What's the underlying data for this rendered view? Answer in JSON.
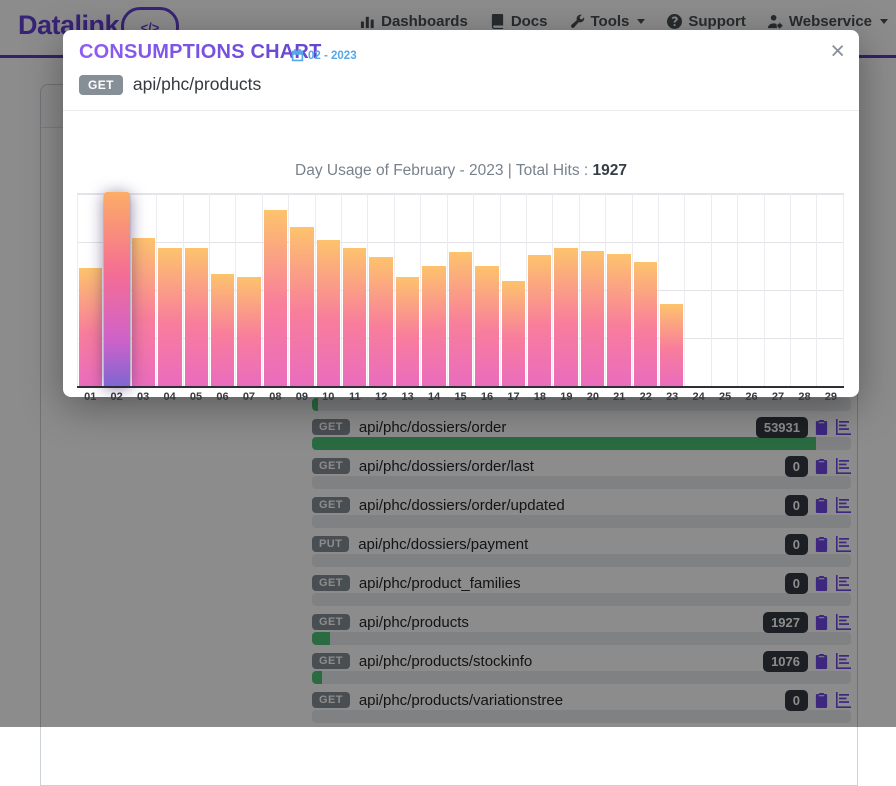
{
  "colors": {
    "brand_purple": "#6741d9",
    "nav_border": "#5f3dc4",
    "nav_text": "#495057",
    "period_blue": "#55a7e8",
    "method_gray": "#868e96",
    "count_dark": "#343a40",
    "icon_purple": "#7048e8",
    "progress_green": "#4dc378",
    "track_gray": "#e9ecef"
  },
  "navbar": {
    "brand": "Datalink",
    "logo_glyph": "</>",
    "items": [
      {
        "label": "Dashboards",
        "icon": "chart-column-icon",
        "caret": false
      },
      {
        "label": "Docs",
        "icon": "book-icon",
        "caret": false
      },
      {
        "label": "Tools",
        "icon": "wrench-icon",
        "caret": true
      },
      {
        "label": "Support",
        "icon": "circle-question-icon",
        "caret": false
      },
      {
        "label": "Webservice",
        "icon": "user-gear-icon",
        "caret": true
      }
    ]
  },
  "modal": {
    "title": "CONSUMPTIONS CHART",
    "period": "02 - 2023",
    "method": "GET",
    "endpoint": "api/phc/products",
    "close_label": "×",
    "chart_title_prefix": "Day Usage of February - 2023 | Total Hits : ",
    "total_hits": "1927"
  },
  "chart_data": {
    "type": "bar",
    "title": "Day Usage of February - 2023 | Total Hits : 1927",
    "categories": [
      "01",
      "02",
      "03",
      "04",
      "05",
      "06",
      "07",
      "08",
      "09",
      "10",
      "11",
      "12",
      "13",
      "14",
      "15",
      "16",
      "17",
      "18",
      "19",
      "20",
      "21",
      "22",
      "23",
      "24",
      "25",
      "26",
      "27",
      "28",
      "29"
    ],
    "values": [
      75,
      121,
      94,
      88,
      88,
      71,
      69,
      112,
      101,
      93,
      88,
      82,
      69,
      76,
      85,
      76,
      67,
      83,
      88,
      86,
      84,
      79,
      52,
      0,
      0,
      0,
      0,
      0,
      0
    ],
    "highlighted_category": "02",
    "xlabel": "",
    "ylabel": "",
    "ylim": [
      0,
      122
    ],
    "grid": true,
    "legend": "none"
  },
  "endpoints": {
    "hidden_row_fill_percent": 1.1,
    "rows": [
      {
        "method": "GET",
        "path": "api/phc/dossiers/order",
        "count": "53931",
        "fill_percent": 93.5
      },
      {
        "method": "GET",
        "path": "api/phc/dossiers/order/last",
        "count": "0",
        "fill_percent": 0
      },
      {
        "method": "GET",
        "path": "api/phc/dossiers/order/updated",
        "count": "0",
        "fill_percent": 0
      },
      {
        "method": "PUT",
        "path": "api/phc/dossiers/payment",
        "count": "0",
        "fill_percent": 0
      },
      {
        "method": "GET",
        "path": "api/phc/product_families",
        "count": "0",
        "fill_percent": 0
      },
      {
        "method": "GET",
        "path": "api/phc/products",
        "count": "1927",
        "fill_percent": 3.4
      },
      {
        "method": "GET",
        "path": "api/phc/products/stockinfo",
        "count": "1076",
        "fill_percent": 1.9
      },
      {
        "method": "GET",
        "path": "api/phc/products/variationstree",
        "count": "0",
        "fill_percent": 0
      }
    ],
    "row_icons": [
      "clipboard-icon",
      "consumption-chart-icon"
    ]
  }
}
